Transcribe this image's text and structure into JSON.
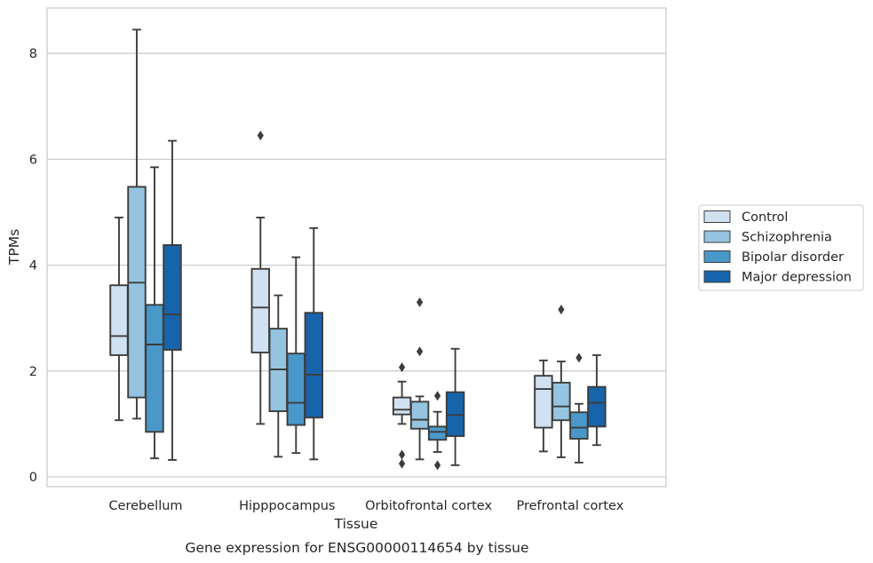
{
  "caption": "Gene expression for ENSG00000114654 by tissue",
  "chart_data": {
    "type": "box",
    "xlabel": "Tissue",
    "ylabel": "TPMs",
    "ylim": [
      -0.2,
      8.8
    ],
    "yticks": [
      0,
      2,
      4,
      6,
      8
    ],
    "grid": "horizontal",
    "legend_position": "right",
    "categories": [
      "Cerebellum",
      "Hipppocampus",
      "Orbitofrontal cortex",
      "Prefrontal cortex"
    ],
    "series": [
      {
        "name": "Control",
        "color": "#d0e1f2",
        "boxes": [
          {
            "whislo": 1.07,
            "q1": 2.3,
            "med": 2.66,
            "q3": 3.62,
            "whishi": 4.9,
            "fliers": []
          },
          {
            "whislo": 1.0,
            "q1": 2.35,
            "med": 3.2,
            "q3": 3.93,
            "whishi": 4.9,
            "fliers": [
              6.45
            ]
          },
          {
            "whislo": 1.0,
            "q1": 1.18,
            "med": 1.27,
            "q3": 1.5,
            "whishi": 1.8,
            "fliers": [
              2.07,
              0.42,
              0.25
            ]
          },
          {
            "whislo": 0.48,
            "q1": 0.93,
            "med": 1.66,
            "q3": 1.91,
            "whishi": 2.2,
            "fliers": []
          }
        ]
      },
      {
        "name": "Schizophrenia",
        "color": "#94c4df",
        "boxes": [
          {
            "whislo": 1.1,
            "q1": 1.5,
            "med": 3.67,
            "q3": 5.48,
            "whishi": 8.45,
            "fliers": []
          },
          {
            "whislo": 0.38,
            "q1": 1.24,
            "med": 2.03,
            "q3": 2.8,
            "whishi": 3.43,
            "fliers": []
          },
          {
            "whislo": 0.33,
            "q1": 0.91,
            "med": 1.08,
            "q3": 1.42,
            "whishi": 1.52,
            "fliers": [
              3.3,
              2.37
            ]
          },
          {
            "whislo": 0.37,
            "q1": 1.07,
            "med": 1.33,
            "q3": 1.78,
            "whishi": 2.18,
            "fliers": [
              3.16
            ]
          }
        ]
      },
      {
        "name": "Bipolar disorder",
        "color": "#4a98c9",
        "boxes": [
          {
            "whislo": 0.35,
            "q1": 0.85,
            "med": 2.5,
            "q3": 3.25,
            "whishi": 5.85,
            "fliers": []
          },
          {
            "whislo": 0.45,
            "q1": 0.98,
            "med": 1.4,
            "q3": 2.33,
            "whishi": 4.15,
            "fliers": []
          },
          {
            "whislo": 0.47,
            "q1": 0.7,
            "med": 0.85,
            "q3": 0.95,
            "whishi": 1.23,
            "fliers": [
              1.53,
              0.22
            ]
          },
          {
            "whislo": 0.27,
            "q1": 0.72,
            "med": 0.93,
            "q3": 1.22,
            "whishi": 1.38,
            "fliers": [
              2.25
            ]
          }
        ]
      },
      {
        "name": "Major depression",
        "color": "#1764ab",
        "boxes": [
          {
            "whislo": 0.32,
            "q1": 2.4,
            "med": 3.07,
            "q3": 4.38,
            "whishi": 6.35,
            "fliers": []
          },
          {
            "whislo": 0.33,
            "q1": 1.12,
            "med": 1.93,
            "q3": 3.1,
            "whishi": 4.7,
            "fliers": []
          },
          {
            "whislo": 0.22,
            "q1": 0.77,
            "med": 1.17,
            "q3": 1.6,
            "whishi": 2.42,
            "fliers": []
          },
          {
            "whislo": 0.6,
            "q1": 0.95,
            "med": 1.4,
            "q3": 1.7,
            "whishi": 2.3,
            "fliers": []
          }
        ]
      }
    ]
  }
}
